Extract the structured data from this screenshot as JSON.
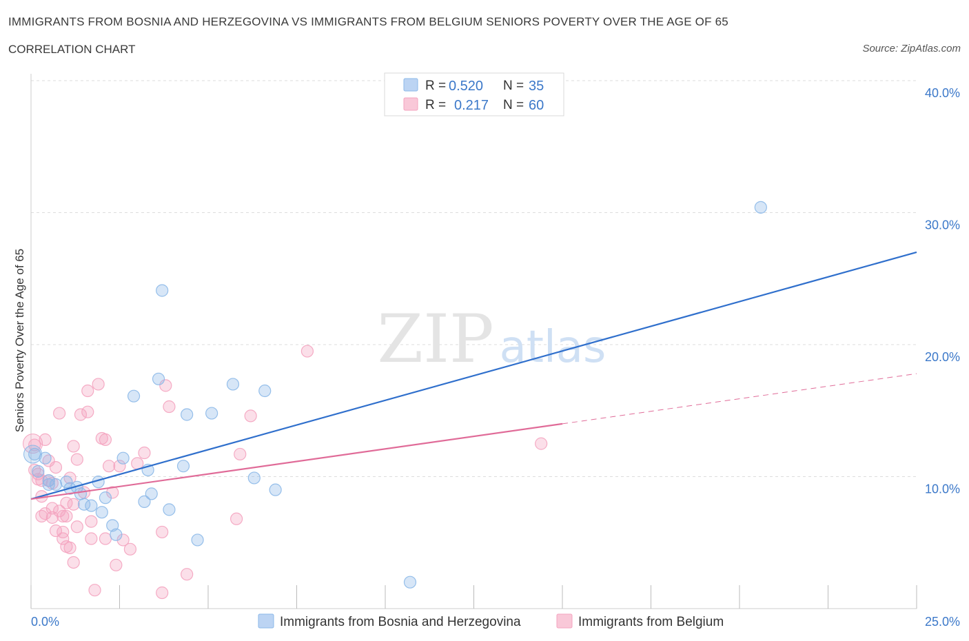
{
  "title": "IMMIGRANTS FROM BOSNIA AND HERZEGOVINA VS IMMIGRANTS FROM BELGIUM SENIORS POVERTY OVER THE AGE OF 65",
  "subtitle": "CORRELATION CHART",
  "source": "Source: ZipAtlas.com",
  "watermark": {
    "zip": "ZIP",
    "atlas": "atlas"
  },
  "colors": {
    "bosnia": "#8bb8e8",
    "bosnia_line": "#2f6fcc",
    "belgium": "#f4a3bf",
    "belgium_line": "#e06b98",
    "grid": "#dcdcdc",
    "axis_label": "#3b78c9"
  },
  "legend": {
    "rows": [
      {
        "r_label": "R = ",
        "r_value": "0.520",
        "n_label": "N = ",
        "n_value": "35"
      },
      {
        "r_label": "R = ",
        "r_value": "0.217",
        "n_label": "N = ",
        "n_value": "60"
      }
    ]
  },
  "chart_data": {
    "type": "scatter",
    "title": "IMMIGRANTS FROM BOSNIA AND HERZEGOVINA VS IMMIGRANTS FROM BELGIUM SENIORS POVERTY OVER THE AGE OF 65",
    "xlabel": "",
    "ylabel": "Seniors Poverty Over the Age of 65",
    "xlim": [
      0,
      25
    ],
    "ylim": [
      0,
      40
    ],
    "x_tick_labels": [
      "0.0%",
      "25.0%"
    ],
    "y_ticks": [
      10,
      20,
      30,
      40
    ],
    "y_tick_labels": [
      "10.0%",
      "20.0%",
      "30.0%",
      "40.0%"
    ],
    "grid": true,
    "legend_position": "bottom",
    "series": [
      {
        "name": "Immigrants from Bosnia and Herzegovina",
        "r": 0.52,
        "n": 35,
        "trend": {
          "x": [
            0,
            25
          ],
          "y": [
            8.3,
            27.0
          ],
          "dashed_from": null
        },
        "points": [
          [
            0.1,
            11.7
          ],
          [
            0.2,
            10.4
          ],
          [
            0.4,
            11.4
          ],
          [
            0.5,
            9.7
          ],
          [
            0.5,
            9.4
          ],
          [
            0.7,
            9.4
          ],
          [
            1.0,
            9.6
          ],
          [
            1.1,
            9.1
          ],
          [
            1.3,
            9.2
          ],
          [
            1.4,
            8.7
          ],
          [
            1.5,
            7.9
          ],
          [
            1.7,
            7.8
          ],
          [
            1.9,
            9.6
          ],
          [
            2.0,
            7.3
          ],
          [
            2.1,
            8.4
          ],
          [
            2.3,
            6.3
          ],
          [
            2.4,
            5.6
          ],
          [
            2.6,
            11.4
          ],
          [
            2.9,
            16.1
          ],
          [
            3.2,
            8.1
          ],
          [
            3.3,
            10.5
          ],
          [
            3.4,
            8.7
          ],
          [
            3.6,
            17.4
          ],
          [
            3.7,
            24.1
          ],
          [
            3.9,
            7.5
          ],
          [
            4.3,
            10.8
          ],
          [
            4.4,
            14.7
          ],
          [
            4.7,
            5.2
          ],
          [
            5.1,
            14.8
          ],
          [
            5.7,
            17.0
          ],
          [
            6.3,
            9.9
          ],
          [
            6.6,
            16.5
          ],
          [
            6.9,
            9.0
          ],
          [
            10.7,
            2.0
          ],
          [
            20.6,
            30.4
          ]
        ]
      },
      {
        "name": "Immigrants from Belgium",
        "r": 0.217,
        "n": 60,
        "trend": {
          "x": [
            0,
            15,
            25
          ],
          "y": [
            8.3,
            14.0,
            17.8
          ],
          "dashed_from": 15
        },
        "points": [
          [
            0.1,
            12.4
          ],
          [
            0.1,
            10.5
          ],
          [
            0.2,
            10.2
          ],
          [
            0.2,
            9.8
          ],
          [
            0.3,
            8.5
          ],
          [
            0.3,
            7.0
          ],
          [
            0.4,
            7.2
          ],
          [
            0.4,
            12.8
          ],
          [
            0.5,
            11.2
          ],
          [
            0.5,
            9.7
          ],
          [
            0.6,
            9.5
          ],
          [
            0.6,
            7.6
          ],
          [
            0.7,
            10.7
          ],
          [
            0.7,
            5.9
          ],
          [
            0.8,
            7.4
          ],
          [
            0.8,
            14.8
          ],
          [
            0.9,
            7.0
          ],
          [
            0.9,
            5.8
          ],
          [
            0.9,
            5.3
          ],
          [
            1.0,
            8.0
          ],
          [
            1.0,
            4.7
          ],
          [
            1.0,
            7.0
          ],
          [
            1.1,
            4.6
          ],
          [
            1.2,
            7.9
          ],
          [
            1.2,
            12.3
          ],
          [
            1.2,
            3.5
          ],
          [
            1.3,
            6.2
          ],
          [
            1.3,
            11.3
          ],
          [
            1.4,
            14.7
          ],
          [
            1.5,
            8.8
          ],
          [
            1.6,
            14.9
          ],
          [
            1.6,
            16.5
          ],
          [
            1.7,
            6.6
          ],
          [
            1.7,
            5.3
          ],
          [
            1.8,
            1.4
          ],
          [
            1.9,
            17.0
          ],
          [
            2.1,
            12.8
          ],
          [
            2.1,
            5.3
          ],
          [
            2.2,
            10.8
          ],
          [
            2.3,
            8.8
          ],
          [
            2.4,
            3.3
          ],
          [
            2.5,
            10.8
          ],
          [
            2.6,
            5.2
          ],
          [
            2.8,
            4.5
          ],
          [
            3.0,
            11.0
          ],
          [
            3.2,
            11.8
          ],
          [
            3.7,
            5.8
          ],
          [
            3.7,
            1.2
          ],
          [
            3.8,
            16.9
          ],
          [
            3.9,
            15.3
          ],
          [
            4.4,
            2.6
          ],
          [
            5.8,
            6.8
          ],
          [
            5.9,
            11.7
          ],
          [
            6.2,
            14.6
          ],
          [
            7.8,
            19.5
          ],
          [
            14.4,
            12.5
          ],
          [
            0.6,
            6.9
          ],
          [
            1.1,
            9.9
          ],
          [
            0.3,
            9.7
          ],
          [
            2.0,
            12.9
          ]
        ]
      }
    ]
  }
}
